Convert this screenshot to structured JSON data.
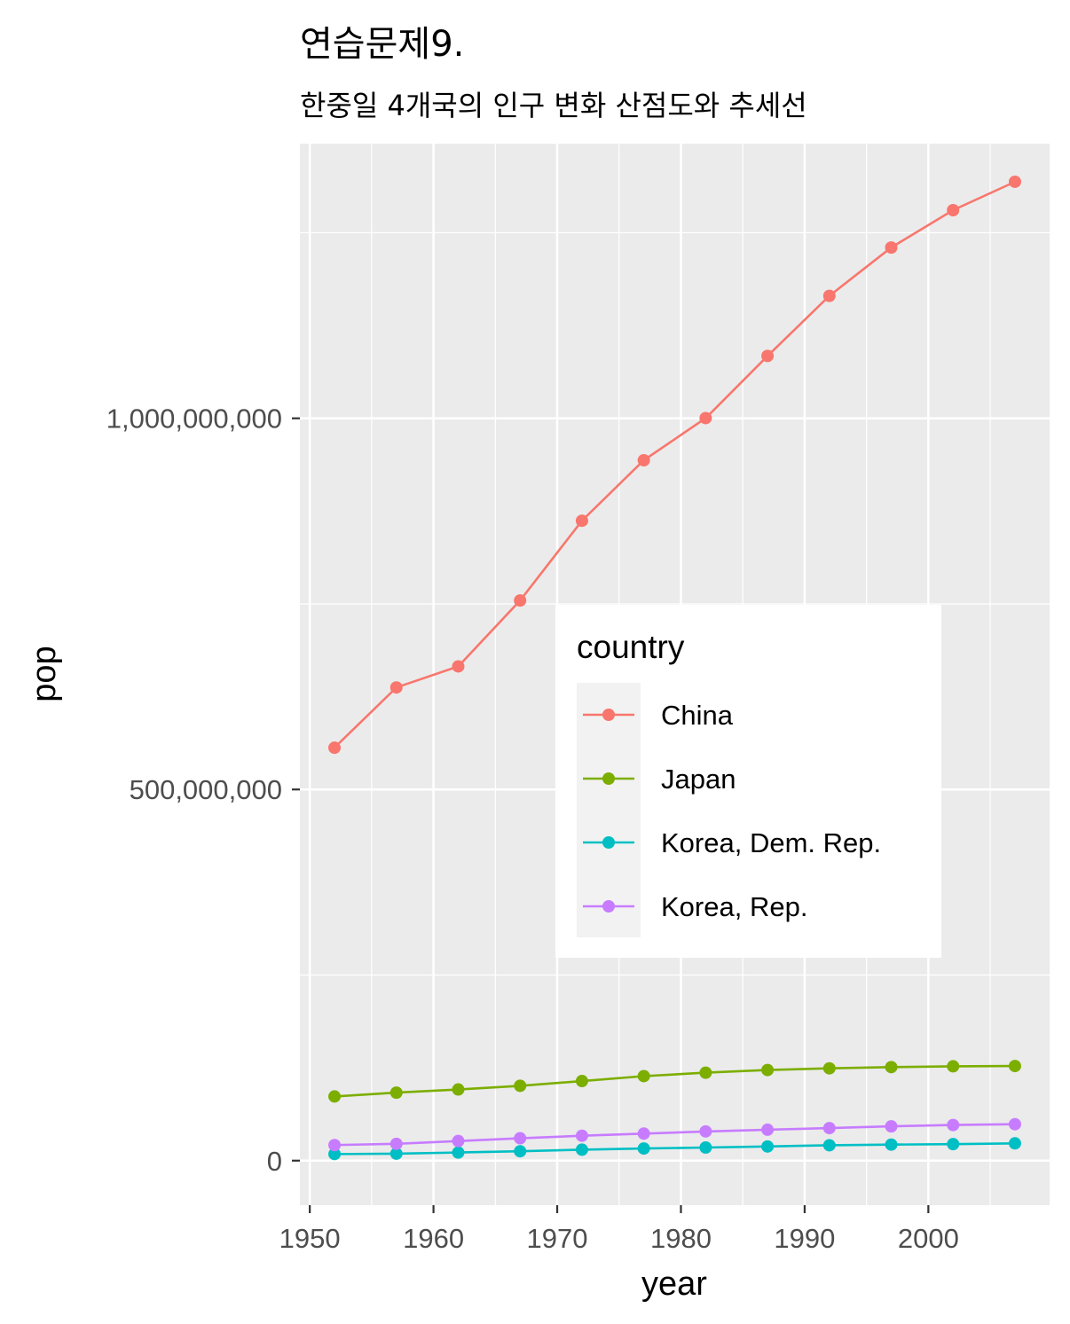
{
  "chart_data": {
    "type": "line",
    "title": "연습문제9.",
    "subtitle": "한중일 4개국의 인구 변화 산점도와 추세선",
    "xlabel": "year",
    "ylabel": "pop",
    "xlim": [
      1949.2,
      2009.8
    ],
    "ylim": [
      -60000000,
      1370000000
    ],
    "x_ticks": [
      1950,
      1960,
      1970,
      1980,
      1990,
      2000
    ],
    "x_tick_labels": [
      "1950",
      "1960",
      "1970",
      "1980",
      "1990",
      "2000"
    ],
    "y_ticks": [
      0,
      500000000,
      1000000000
    ],
    "y_tick_labels": [
      "0",
      "500,000,000",
      "1,000,000,000"
    ],
    "grid": true,
    "legend": {
      "title": "country",
      "placement": "inside-center-right"
    },
    "x": [
      1952,
      1957,
      1962,
      1967,
      1972,
      1977,
      1982,
      1987,
      1992,
      1997,
      2002,
      2007
    ],
    "series": [
      {
        "name": "China",
        "color": "#F8766D",
        "values": [
          556263527,
          637408000,
          665770000,
          754550000,
          862030000,
          943455000,
          1000281000,
          1084035000,
          1164970000,
          1230075000,
          1280400000,
          1318683096
        ]
      },
      {
        "name": "Japan",
        "color": "#7CAE00",
        "values": [
          86459025,
          91563009,
          95831757,
          100825279,
          107188273,
          113872473,
          118454974,
          122091325,
          124329269,
          125956499,
          127065841,
          127467972
        ]
      },
      {
        "name": "Korea, Dem. Rep.",
        "color": "#00BFC4",
        "values": [
          8865488,
          9411381,
          10917494,
          12617009,
          14781241,
          16325320,
          17647518,
          19067554,
          20711375,
          21585105,
          22215365,
          23301725
        ]
      },
      {
        "name": "Korea, Rep.",
        "color": "#C77CFF",
        "values": [
          20947571,
          22611552,
          26420307,
          30131000,
          33505000,
          36436000,
          39326000,
          41622000,
          43805450,
          46173816,
          47969150,
          49044790
        ]
      }
    ]
  }
}
